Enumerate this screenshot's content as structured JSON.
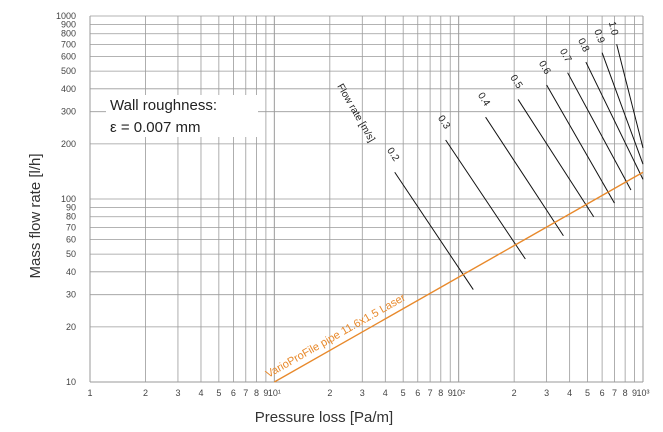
{
  "chart_data": {
    "type": "line",
    "xlabel": "Pressure loss [Pa/m]",
    "ylabel": "Mass flow rate [l/h]",
    "x_scale": "log",
    "y_scale": "log",
    "xlim": [
      1,
      1000
    ],
    "ylim": [
      10,
      1000
    ],
    "x_ticks": [
      1,
      2,
      3,
      4,
      5,
      6,
      7,
      8,
      9,
      10,
      20,
      30,
      40,
      50,
      60,
      70,
      80,
      90,
      100,
      200,
      300,
      400,
      500,
      600,
      700,
      800,
      900,
      1000
    ],
    "x_tick_labels": [
      "1",
      "2",
      "3",
      "4",
      "5",
      "6",
      "7",
      "8",
      "9",
      "10¹",
      "2",
      "3",
      "4",
      "5",
      "6",
      "7",
      "8",
      "9",
      "10²",
      "2",
      "3",
      "4",
      "5",
      "6",
      "7",
      "8",
      "9",
      "10³"
    ],
    "y_ticks": [
      10,
      20,
      30,
      40,
      50,
      60,
      70,
      80,
      90,
      100,
      200,
      300,
      400,
      500,
      600,
      700,
      800,
      900,
      1000
    ],
    "y_tick_labels": [
      "10",
      "20",
      "30",
      "40",
      "50",
      "60",
      "70",
      "80",
      "90",
      "100",
      "200",
      "300",
      "400",
      "500",
      "600",
      "700",
      "800",
      "900",
      "1000"
    ],
    "grid": true,
    "annotation": {
      "line1": "Wall roughness:",
      "line2": "ε = 0.007 mm"
    },
    "velocity_axis_label": "Flow rate [m/s]",
    "series": [
      {
        "name": "VarioProFile pipe 11.6x1.5 Laser",
        "color": "#e8892b",
        "x": [
          10,
          1000
        ],
        "y": [
          10,
          140
        ]
      }
    ],
    "velocity_lines": [
      {
        "label": "0.2",
        "x": [
          45,
          120
        ],
        "y": [
          140,
          32
        ]
      },
      {
        "label": "0.3",
        "x": [
          85,
          230
        ],
        "y": [
          210,
          47
        ]
      },
      {
        "label": "0.4",
        "x": [
          140,
          370
        ],
        "y": [
          280,
          63
        ]
      },
      {
        "label": "0.5",
        "x": [
          210,
          540
        ],
        "y": [
          350,
          80
        ]
      },
      {
        "label": "0.6",
        "x": [
          300,
          700
        ],
        "y": [
          420,
          95
        ]
      },
      {
        "label": "0.7",
        "x": [
          390,
          860
        ],
        "y": [
          490,
          112
        ]
      },
      {
        "label": "0.8",
        "x": [
          490,
          1000
        ],
        "y": [
          560,
          128
        ]
      },
      {
        "label": "0.9",
        "x": [
          600,
          1000
        ],
        "y": [
          630,
          155
        ]
      },
      {
        "label": "1.0",
        "x": [
          720,
          1000
        ],
        "y": [
          700,
          190
        ]
      }
    ],
    "colors": {
      "grid": "#9a9a9a",
      "velocity_lines": "#111111",
      "pipe": "#e8892b"
    }
  }
}
